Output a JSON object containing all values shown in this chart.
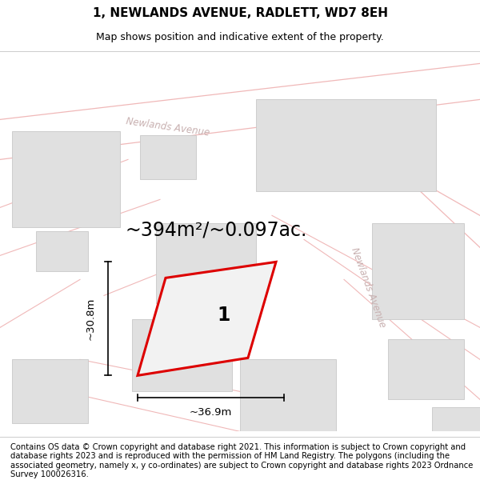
{
  "title": "1, NEWLANDS AVENUE, RADLETT, WD7 8EH",
  "subtitle": "Map shows position and indicative extent of the property.",
  "footer": "Contains OS data © Crown copyright and database right 2021. This information is subject to Crown copyright and database rights 2023 and is reproduced with the permission of HM Land Registry. The polygons (including the associated geometry, namely x, y co-ordinates) are subject to Crown copyright and database rights 2023 Ordnance Survey 100026316.",
  "area_label": "~394m²/~0.097ac.",
  "width_label": "~36.9m",
  "height_label": "~30.8m",
  "plot_number": "1",
  "bg_color": "#f2f2f2",
  "road_fill": "#ffffff",
  "road_border": "#f0b8b8",
  "building_color": "#e0e0e0",
  "building_edge": "#c8c8c8",
  "plot_fill": "#f2f2f2",
  "plot_edge": "#dd0000",
  "plot_edge_width": 2.2,
  "road_label_color": "#c8b0b0",
  "title_fontsize": 11,
  "subtitle_fontsize": 9,
  "footer_fontsize": 7.2,
  "area_fontsize": 17,
  "dim_fontsize": 9.5,
  "plot_num_fontsize": 17,
  "road_fontsize": 8.5,
  "road1_name": "Newlands Avenue",
  "road2_name": "Newlands Avenue"
}
